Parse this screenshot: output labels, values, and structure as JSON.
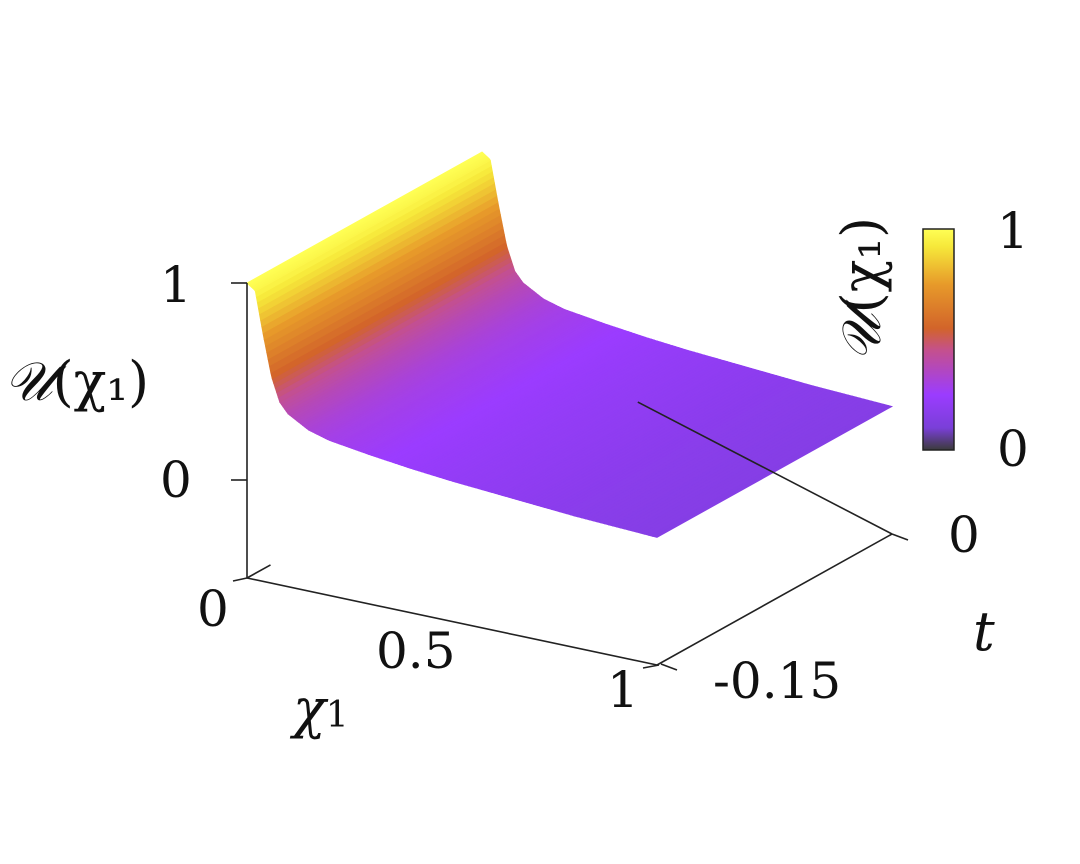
{
  "chart_data": {
    "type": "surface3d",
    "title": "",
    "x_axis": {
      "label_symbol": "χ",
      "label_subscript": "1",
      "range": [
        0,
        1
      ],
      "ticks": [
        "0",
        "0.5",
        "1"
      ]
    },
    "y_axis": {
      "label": "t",
      "range": [
        -0.15,
        0
      ],
      "ticks": [
        "-0.15",
        "0"
      ]
    },
    "z_axis": {
      "label_symbol": "𝒰",
      "label_arg": "(χ₁)",
      "range": [
        0,
        1
      ],
      "ticks": [
        "0",
        "1"
      ]
    },
    "colorbar": {
      "label_symbol": "𝒰",
      "label_arg": "(χ₁)",
      "min_label": "0",
      "max_label": "1",
      "range": [
        0,
        1
      ],
      "colormap": [
        "#3b3b3b",
        "#9b3cff",
        "#c4508e",
        "#d2642a",
        "#e79a2a",
        "#f6e83a",
        "#ffff55"
      ]
    },
    "surface": {
      "description_values": "U falls from 1 at χ1 = 0 to about 0.30 near χ1 = 0.15 and decreases slowly to about 0.15 at χ1 = 1; nearly constant in t",
      "chi1": [
        0.0,
        0.02,
        0.04,
        0.06,
        0.08,
        0.1,
        0.15,
        0.2,
        0.3,
        0.4,
        0.5,
        0.6,
        0.7,
        0.8,
        0.9,
        1.0
      ],
      "u": [
        1.0,
        0.97,
        0.75,
        0.55,
        0.43,
        0.38,
        0.32,
        0.29,
        0.26,
        0.235,
        0.215,
        0.2,
        0.185,
        0.17,
        0.16,
        0.15
      ],
      "t_range": [
        -0.15,
        0
      ]
    }
  }
}
